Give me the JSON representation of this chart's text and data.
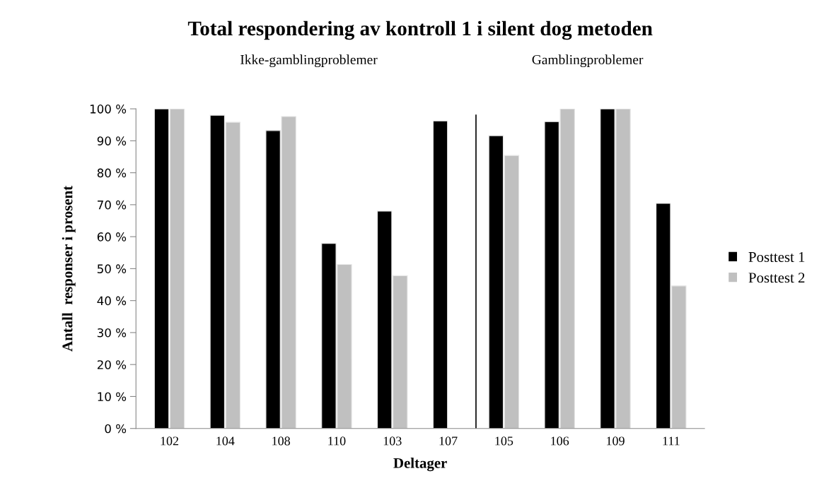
{
  "chart_data": {
    "type": "bar",
    "title": "Total respondering av kontroll 1 i silent dog metoden",
    "xlabel": "Deltager",
    "ylabel": "Antall  responser i prosent",
    "categories": [
      "102",
      "104",
      "108",
      "110",
      "103",
      "107",
      "105",
      "106",
      "109",
      "111"
    ],
    "series": [
      {
        "name": "Posttest 1",
        "color": "#000000",
        "values": [
          100,
          98,
          93.2,
          57.9,
          68,
          96.2,
          91.6,
          96,
          100,
          70.4
        ]
      },
      {
        "name": "Posttest 2",
        "color": "#c0c0c0",
        "values": [
          100,
          95.8,
          97.6,
          51.3,
          47.8,
          null,
          85.4,
          100,
          100,
          44.6
        ]
      }
    ],
    "ylim": [
      0,
      100
    ],
    "yticks": [
      {
        "value": 0,
        "label": "0 %"
      },
      {
        "value": 10,
        "label": "10 %"
      },
      {
        "value": 20,
        "label": "20 %"
      },
      {
        "value": 30,
        "label": "30 %"
      },
      {
        "value": 40,
        "label": "40 %"
      },
      {
        "value": 50,
        "label": "50 %"
      },
      {
        "value": 60,
        "label": "60 %"
      },
      {
        "value": 70,
        "label": "70 %"
      },
      {
        "value": 80,
        "label": "80 %"
      },
      {
        "value": 90,
        "label": "90 %"
      },
      {
        "value": 100,
        "label": "100 %"
      }
    ],
    "annotations": [
      "Ikke-gamblingproblemer",
      "Gamblingproblemer"
    ],
    "legend": "right",
    "grid": false
  }
}
